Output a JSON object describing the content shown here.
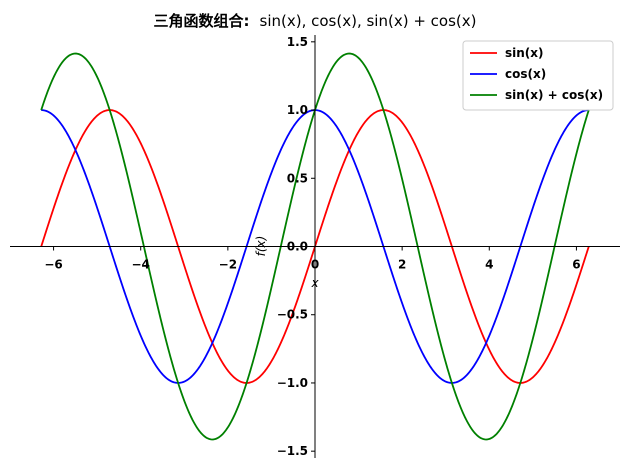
{
  "chart_data": {
    "type": "line",
    "title": {
      "prefix": "三角函数组合:",
      "math": "sin(x), cos(x), sin(x) + cos(x)"
    },
    "xlabel": "x",
    "ylabel": "f(x)",
    "xlim": [
      -7.0,
      7.0
    ],
    "ylim": [
      -1.55,
      1.55
    ],
    "x_domain": [
      -6.2832,
      6.2832
    ],
    "xticks": [
      -6,
      -4,
      -2,
      0,
      2,
      4,
      6
    ],
    "xtick_labels": [
      "−6",
      "−4",
      "−2",
      "0",
      "2",
      "4",
      "6"
    ],
    "yticks": [
      -1.5,
      -1.0,
      -0.5,
      0.0,
      0.5,
      1.0,
      1.5
    ],
    "ytick_labels": [
      "−1.5",
      "−1.0",
      "−0.5",
      "0.0",
      "0.5",
      "1.0",
      "1.5"
    ],
    "grid": false,
    "spines": "centered at origin",
    "legend_position": "top-right",
    "series": [
      {
        "name": "sin(x)",
        "color": "#ff0000",
        "function": "sin"
      },
      {
        "name": "cos(x)",
        "color": "#0000ff",
        "function": "cos"
      },
      {
        "name": "sin(x) + cos(x)",
        "color": "#008000",
        "function": "sin+cos"
      }
    ]
  }
}
